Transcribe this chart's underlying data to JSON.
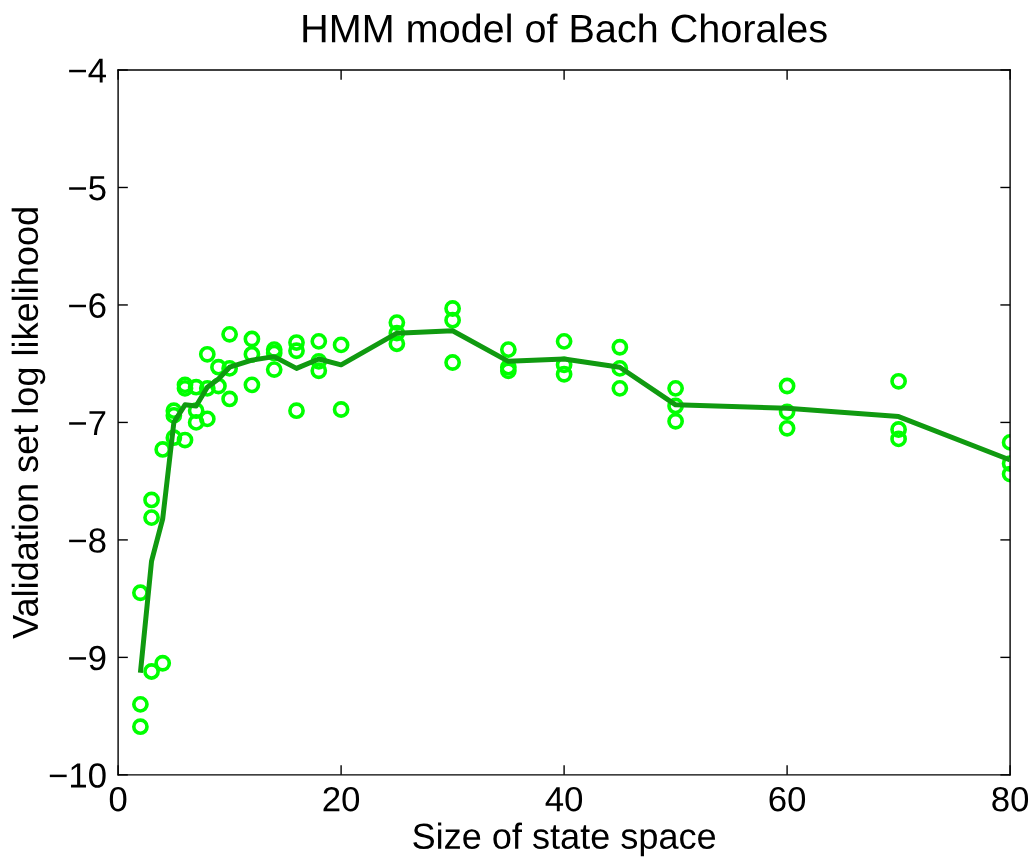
{
  "chart_data": {
    "type": "scatter",
    "title": "HMM model of Bach Chorales",
    "xlabel": "Size of state space",
    "ylabel": "Validation set log likelihood",
    "xlim": [
      0,
      80
    ],
    "ylim": [
      -10,
      -4
    ],
    "xticks": [
      0,
      20,
      40,
      60,
      80
    ],
    "yticks": [
      {
        "value": -10,
        "label": "−10"
      },
      {
        "value": -9,
        "label": "−9"
      },
      {
        "value": -8,
        "label": "−8"
      },
      {
        "value": -7,
        "label": "−7"
      },
      {
        "value": -6,
        "label": "−6"
      },
      {
        "value": -5,
        "label": "−5"
      },
      {
        "value": -4,
        "label": "−4"
      }
    ],
    "grid": false,
    "series": [
      {
        "marker": "circle",
        "color": "#00ff00",
        "x": [
          2,
          2,
          2,
          3,
          3,
          3,
          4,
          4,
          5,
          5,
          5,
          6,
          6,
          6,
          7,
          7,
          7,
          8,
          8,
          8,
          9,
          9,
          10,
          10,
          10,
          12,
          12,
          12,
          14,
          14,
          14,
          16,
          16,
          16,
          18,
          18,
          18,
          20,
          20,
          25,
          25,
          25,
          30,
          30,
          30,
          35,
          35,
          35,
          40,
          40,
          40,
          45,
          45,
          45,
          50,
          50,
          50,
          60,
          60,
          60,
          70,
          70,
          70,
          80,
          80,
          80
        ],
        "values": [
          -8.45,
          -9.4,
          -9.59,
          -7.66,
          -7.81,
          -9.12,
          -7.23,
          -9.05,
          -6.9,
          -6.94,
          -7.13,
          -6.68,
          -6.71,
          -7.15,
          -6.7,
          -6.9,
          -7.0,
          -6.42,
          -6.71,
          -6.97,
          -6.53,
          -6.69,
          -6.25,
          -6.54,
          -6.8,
          -6.29,
          -6.42,
          -6.68,
          -6.38,
          -6.41,
          -6.55,
          -6.32,
          -6.39,
          -6.9,
          -6.31,
          -6.48,
          -6.56,
          -6.34,
          -6.89,
          -6.15,
          -6.24,
          -6.33,
          -6.03,
          -6.13,
          -6.49,
          -6.38,
          -6.53,
          -6.56,
          -6.31,
          -6.51,
          -6.59,
          -6.36,
          -6.54,
          -6.71,
          -6.71,
          -6.86,
          -6.99,
          -6.69,
          -6.91,
          -7.05,
          -6.65,
          -7.06,
          -7.14,
          -7.17,
          -7.35,
          -7.44
        ]
      },
      {
        "type": "line",
        "marker": "none",
        "line_style": "solid",
        "color": "#109a10",
        "x": [
          2,
          3,
          4,
          5,
          6,
          7,
          8,
          9,
          10,
          12,
          14,
          16,
          18,
          20,
          25,
          30,
          35,
          40,
          45,
          50,
          60,
          70,
          80
        ],
        "values": [
          -9.13,
          -8.18,
          -7.82,
          -7.0,
          -6.85,
          -6.86,
          -6.7,
          -6.63,
          -6.53,
          -6.47,
          -6.44,
          -6.54,
          -6.46,
          -6.51,
          -6.24,
          -6.22,
          -6.48,
          -6.46,
          -6.53,
          -6.85,
          -6.88,
          -6.95,
          -7.32
        ]
      }
    ]
  }
}
